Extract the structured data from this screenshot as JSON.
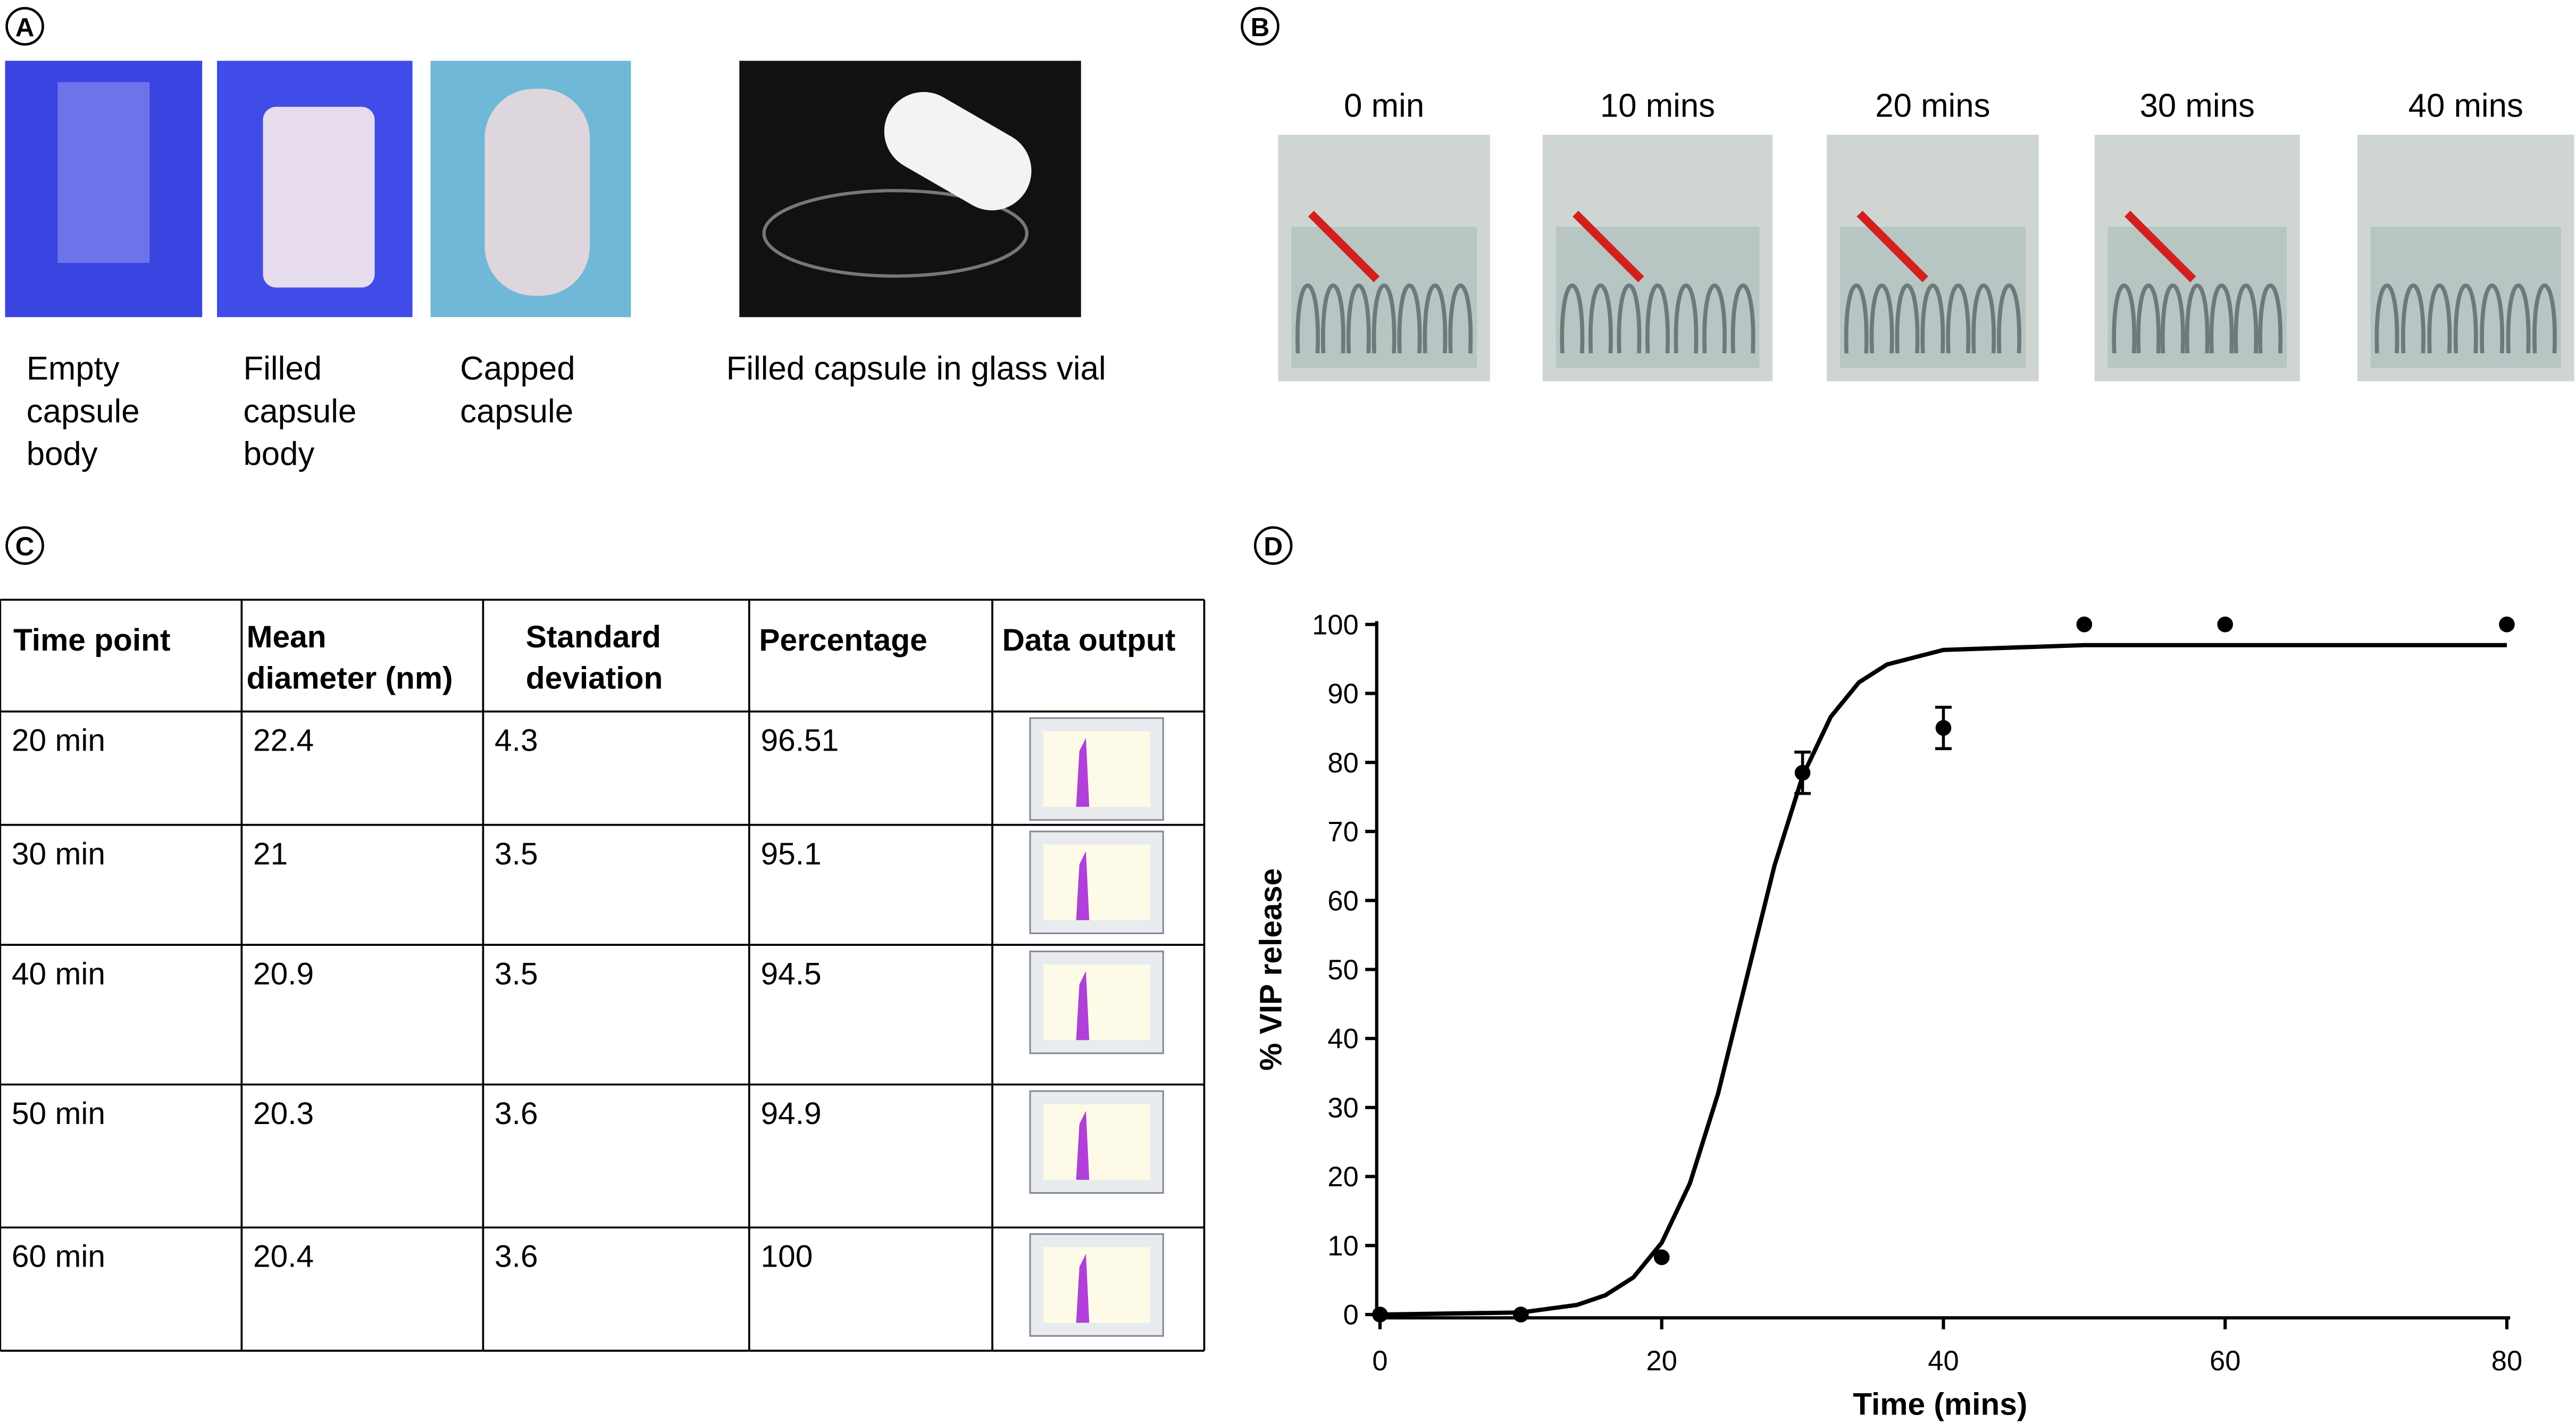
{
  "panels": {
    "a": {
      "letter": "A",
      "captions": [
        [
          "Empty",
          "capsule",
          "body"
        ],
        [
          "Filled",
          "capsule",
          "body"
        ],
        [
          "Capped",
          "capsule"
        ],
        [
          "Filled capsule in glass vial"
        ]
      ]
    },
    "b": {
      "letter": "B",
      "captions": [
        "0 min",
        "10 mins",
        "20 mins",
        "30 mins",
        "40 mins"
      ]
    },
    "c": {
      "letter": "C"
    },
    "d": {
      "letter": "D"
    }
  },
  "table": {
    "header": [
      [
        "Time point"
      ],
      [
        "Mean",
        "diameter (nm)"
      ],
      [
        "Standard",
        "deviation"
      ],
      [
        "Percentage"
      ],
      [
        "Data output"
      ]
    ],
    "rows": [
      [
        "20 min",
        "22.4",
        "4.3",
        "96.51"
      ],
      [
        "30 min",
        "21",
        "3.5",
        "95.1"
      ],
      [
        "40 min",
        "20.9",
        "3.5",
        "94.5"
      ],
      [
        "50 min",
        "20.3",
        "3.6",
        "94.9"
      ],
      [
        "60 min",
        "20.4",
        "3.6",
        "100"
      ]
    ]
  },
  "chart_data": {
    "type": "scatter",
    "x_label": "Time (mins)",
    "y_label": "% VIP release",
    "series": [
      {
        "color": "#000000",
        "x": [
          0,
          10,
          20,
          30,
          40,
          50,
          60,
          80
        ],
        "values": [
          0,
          0,
          8.3,
          78.5,
          85,
          100,
          100,
          100
        ],
        "errors": [
          0,
          0,
          0,
          3,
          3,
          0,
          0,
          0
        ]
      },
      {
        "color": "#000000",
        "x": [
          0,
          10,
          14,
          16,
          18,
          20,
          22,
          24,
          26,
          28,
          30,
          32,
          34,
          36,
          40,
          50,
          60,
          80
        ],
        "values": [
          0,
          0.3,
          1.4,
          2.8,
          5.4,
          10.4,
          19,
          32,
          48.5,
          65,
          78,
          86.6,
          91.6,
          94.2,
          96.3,
          97,
          97,
          97
        ]
      }
    ],
    "xlim": [
      0,
      80
    ],
    "xticks": [
      0,
      20,
      40,
      60,
      80
    ],
    "ylim": [
      0,
      100
    ],
    "yticks": [
      0,
      10,
      20,
      30,
      40,
      50,
      60,
      70,
      80,
      90,
      100
    ]
  }
}
